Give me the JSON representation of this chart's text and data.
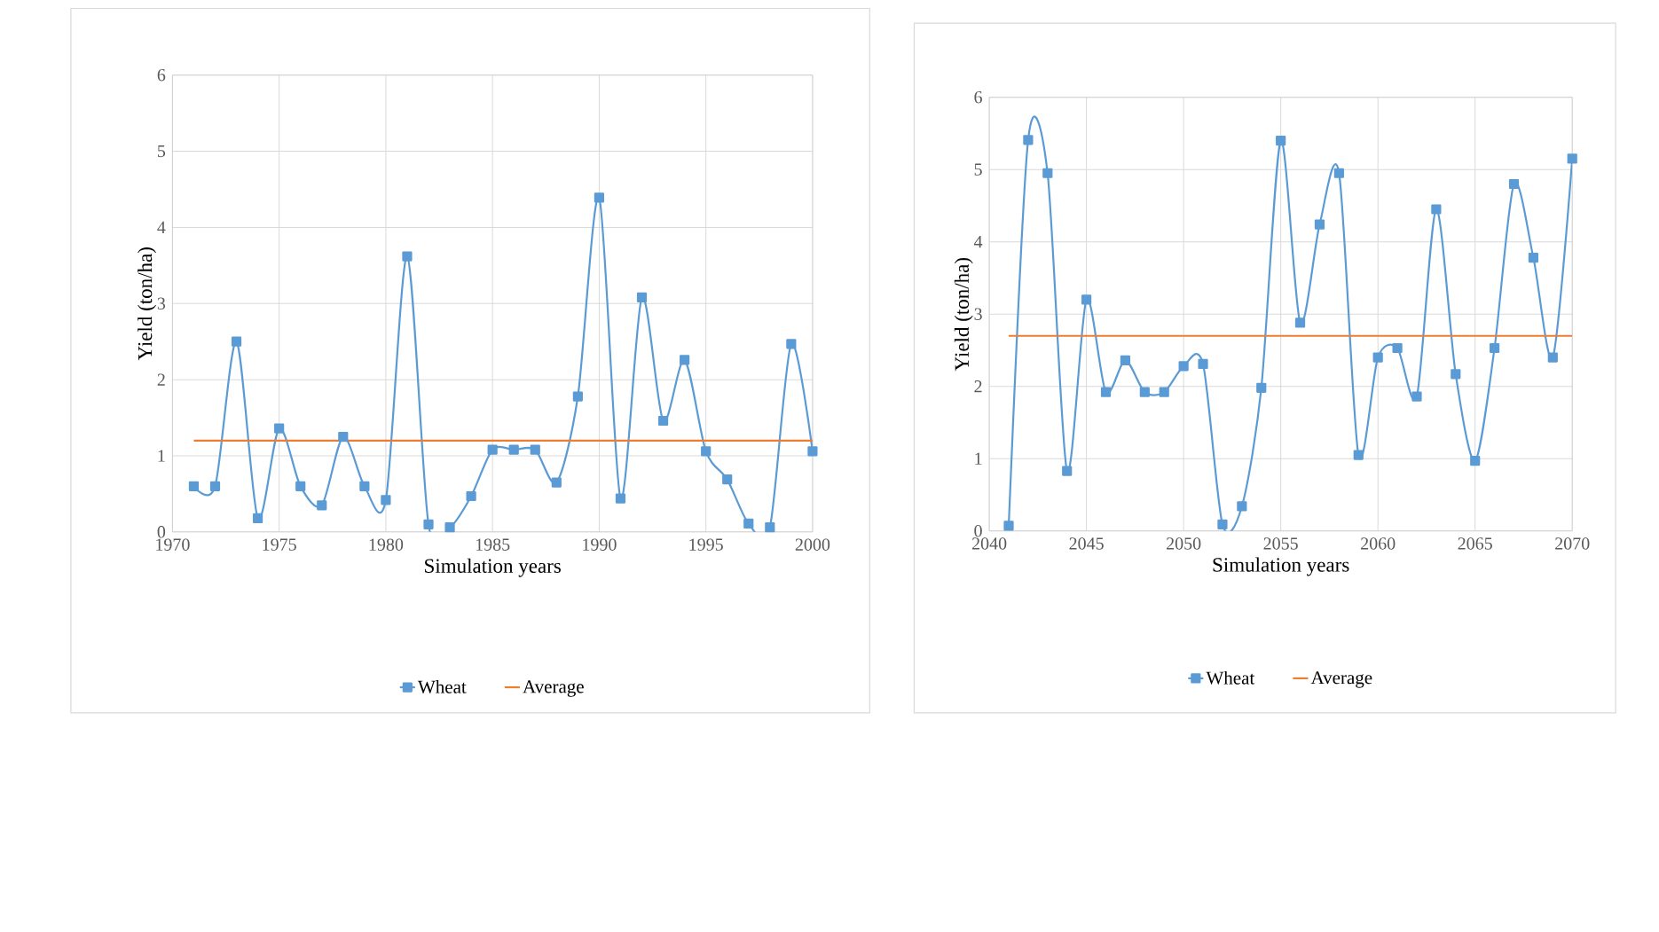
{
  "chart_data": [
    {
      "type": "line",
      "xlabel": "Simulation years",
      "ylabel": "Yield (ton/ha)",
      "xlim": [
        1970,
        2000
      ],
      "ylim": [
        0,
        6
      ],
      "xticks": [
        1970,
        1975,
        1980,
        1985,
        1990,
        1995,
        2000
      ],
      "yticks": [
        0,
        1,
        2,
        3,
        4,
        5,
        6
      ],
      "grid": true,
      "legend": "bottom",
      "series": [
        {
          "name": "Wheat",
          "color": "#5b9bd5",
          "marker": "square",
          "x": [
            1971,
            1972,
            1973,
            1974,
            1975,
            1976,
            1977,
            1978,
            1979,
            1980,
            1981,
            1982,
            1983,
            1984,
            1985,
            1986,
            1987,
            1988,
            1989,
            1990,
            1991,
            1992,
            1993,
            1994,
            1995,
            1996,
            1997,
            1998,
            1999,
            2000
          ],
          "values": [
            0.6,
            0.6,
            2.5,
            0.18,
            1.36,
            0.6,
            0.35,
            1.25,
            0.6,
            0.42,
            3.62,
            0.1,
            0.06,
            0.47,
            1.08,
            1.08,
            1.08,
            0.65,
            1.78,
            4.39,
            0.44,
            3.08,
            1.46,
            2.26,
            1.06,
            0.69,
            0.11,
            0.06,
            2.47,
            1.06
          ]
        },
        {
          "name": "Average",
          "color": "#ed7d31",
          "marker": "none",
          "x": [
            1971,
            2000
          ],
          "values": [
            1.2,
            1.2
          ]
        }
      ]
    },
    {
      "type": "line",
      "xlabel": "Simulation years",
      "ylabel": "Yield (ton/ha)",
      "xlim": [
        2040,
        2070
      ],
      "ylim": [
        0,
        6
      ],
      "xticks": [
        2040,
        2045,
        2050,
        2055,
        2060,
        2065,
        2070
      ],
      "yticks": [
        0,
        1,
        2,
        3,
        4,
        5,
        6
      ],
      "grid": true,
      "legend": "bottom",
      "series": [
        {
          "name": "Wheat",
          "color": "#5b9bd5",
          "marker": "square",
          "x": [
            2041,
            2042,
            2043,
            2044,
            2045,
            2046,
            2047,
            2048,
            2049,
            2050,
            2051,
            2052,
            2053,
            2054,
            2055,
            2056,
            2057,
            2058,
            2059,
            2060,
            2061,
            2062,
            2063,
            2064,
            2065,
            2066,
            2067,
            2068,
            2069,
            2070
          ],
          "values": [
            0.07,
            5.41,
            4.95,
            0.83,
            3.2,
            1.92,
            2.36,
            1.92,
            1.92,
            2.28,
            2.31,
            0.09,
            0.34,
            1.98,
            5.4,
            2.88,
            4.24,
            4.95,
            1.05,
            2.4,
            2.53,
            1.86,
            4.45,
            2.17,
            0.97,
            2.53,
            4.8,
            3.78,
            2.4,
            5.15
          ]
        },
        {
          "name": "Average",
          "color": "#ed7d31",
          "marker": "none",
          "x": [
            2041,
            2070
          ],
          "values": [
            2.7,
            2.7
          ]
        }
      ]
    }
  ]
}
